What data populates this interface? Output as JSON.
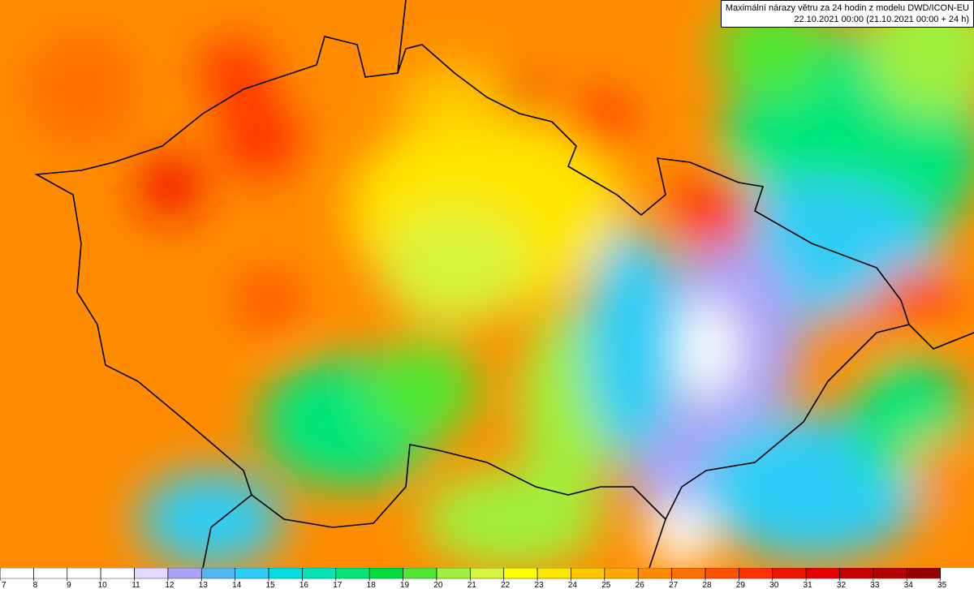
{
  "header": {
    "title": "Maximální nárazy větru za 24 hodin z modelu DWD/ICON-EU",
    "subtitle": "22.10.2021 00:00 (21.10.2021 00:00 + 24 h)"
  },
  "legend": {
    "labels": [
      7,
      8,
      9,
      10,
      11,
      12,
      13,
      14,
      15,
      16,
      17,
      18,
      19,
      20,
      21,
      22,
      23,
      24,
      25,
      26,
      27,
      28,
      29,
      30,
      31,
      32,
      33,
      34,
      35
    ],
    "colors": [
      "#ffffff",
      "#ffffff",
      "#ffffff",
      "#ffffff",
      "#e6d7ff",
      "#aaa2f5",
      "#52b7f0",
      "#2dcdf5",
      "#00e0e0",
      "#00e6b4",
      "#00e67a",
      "#00dc3c",
      "#50e632",
      "#a0f03c",
      "#d7f53c",
      "#ffff00",
      "#ffe600",
      "#ffc800",
      "#ffaa00",
      "#ff8c00",
      "#ff6e00",
      "#ff5000",
      "#ff3200",
      "#f01400",
      "#e60000",
      "#c80000",
      "#b40000",
      "#9b0000"
    ]
  }
}
